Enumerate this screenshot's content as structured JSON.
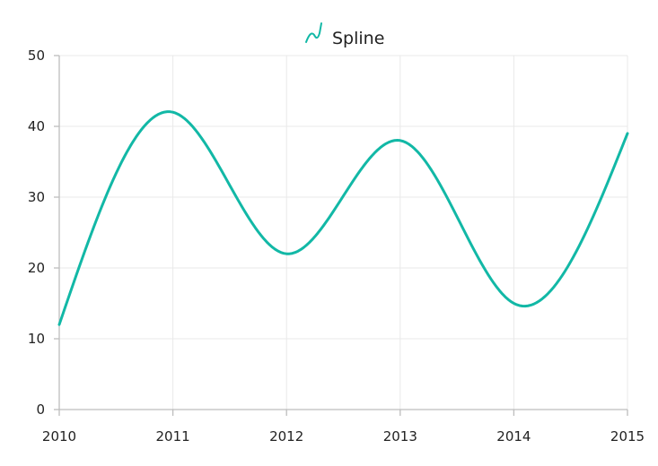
{
  "chart_data": {
    "type": "line",
    "smooth": true,
    "x": [
      2010,
      2011,
      2012,
      2013,
      2014,
      2015
    ],
    "series": [
      {
        "name": "Spline",
        "values": [
          12,
          42,
          22,
          38,
          15,
          39
        ],
        "color": "#12b8a6"
      }
    ],
    "x_ticks": [
      "2010",
      "2011",
      "2012",
      "2013",
      "2014",
      "2015"
    ],
    "y_ticks": [
      "0",
      "10",
      "20",
      "30",
      "40",
      "50"
    ],
    "xlim": [
      2010,
      2015
    ],
    "ylim": [
      0,
      50
    ],
    "grid": true,
    "legend": {
      "position": "top-center",
      "icon": "spline-icon"
    }
  }
}
